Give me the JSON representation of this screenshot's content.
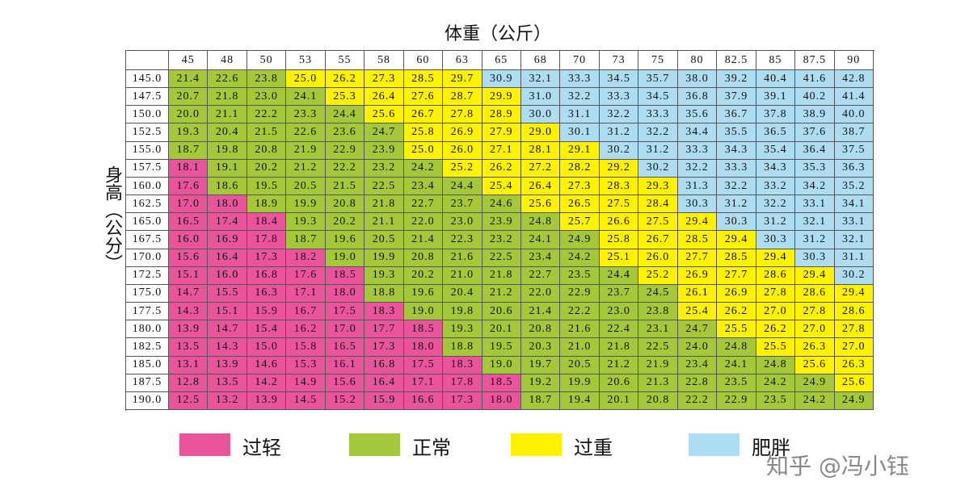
{
  "header": {
    "x_title": "体重（公斤）",
    "y_title": "身高（公分）"
  },
  "legend": [
    {
      "label": "过轻",
      "color": "#e9549b"
    },
    {
      "label": "正常",
      "color": "#a5c83b"
    },
    {
      "label": "过重",
      "color": "#fff200"
    },
    {
      "label": "肥胖",
      "color": "#aedcf0"
    }
  ],
  "watermark": "知乎 @冯小钰",
  "table": {
    "columns": [
      "45",
      "48",
      "50",
      "53",
      "55",
      "58",
      "60",
      "63",
      "65",
      "68",
      "70",
      "73",
      "75",
      "80",
      "82.5",
      "85",
      "87.5",
      "90"
    ],
    "rows": [
      {
        "label": "145.0",
        "cells": [
          "21.4",
          "22.6",
          "23.8",
          "25.0",
          "26.2",
          "27.3",
          "28.5",
          "29.7",
          "30.9",
          "32.1",
          "33.3",
          "34.5",
          "35.7",
          "38.0",
          "39.2",
          "40.4",
          "41.6",
          "42.8"
        ],
        "cell_category": [
          1,
          1,
          1,
          2,
          2,
          2,
          2,
          2,
          3,
          3,
          3,
          3,
          3,
          3,
          3,
          3,
          3,
          3
        ]
      },
      {
        "label": "147.5",
        "cells": [
          "20.7",
          "21.8",
          "23.0",
          "24.1",
          "25.3",
          "26.4",
          "27.6",
          "28.7",
          "29.9",
          "31.0",
          "32.2",
          "33.3",
          "34.5",
          "36.8",
          "37.9",
          "39.1",
          "40.2",
          "41.4"
        ],
        "cell_category": [
          1,
          1,
          1,
          1,
          2,
          2,
          2,
          2,
          2,
          3,
          3,
          3,
          3,
          3,
          3,
          3,
          3,
          3
        ]
      },
      {
        "label": "150.0",
        "cells": [
          "20.0",
          "21.1",
          "22.2",
          "23.3",
          "24.4",
          "25.6",
          "26.7",
          "27.8",
          "28.9",
          "30.0",
          "31.1",
          "32.2",
          "33.3",
          "35.6",
          "36.7",
          "37.8",
          "38.9",
          "40.0"
        ],
        "cell_category": [
          1,
          1,
          1,
          1,
          1,
          2,
          2,
          2,
          2,
          3,
          3,
          3,
          3,
          3,
          3,
          3,
          3,
          3
        ]
      },
      {
        "label": "152.5",
        "cells": [
          "19.3",
          "20.4",
          "21.5",
          "22.6",
          "23.6",
          "24.7",
          "25.8",
          "26.9",
          "27.9",
          "29.0",
          "30.1",
          "31.2",
          "32.2",
          "34.4",
          "35.5",
          "36.5",
          "37.6",
          "38.7"
        ],
        "cell_category": [
          1,
          1,
          1,
          1,
          1,
          1,
          2,
          2,
          2,
          2,
          3,
          3,
          3,
          3,
          3,
          3,
          3,
          3
        ]
      },
      {
        "label": "155.0",
        "cells": [
          "18.7",
          "19.8",
          "20.8",
          "21.9",
          "22.9",
          "23.9",
          "25.0",
          "26.0",
          "27.1",
          "28.1",
          "29.1",
          "30.2",
          "31.2",
          "33.3",
          "34.3",
          "35.4",
          "36.4",
          "37.5"
        ],
        "cell_category": [
          1,
          1,
          1,
          1,
          1,
          1,
          2,
          2,
          2,
          2,
          2,
          3,
          3,
          3,
          3,
          3,
          3,
          3
        ]
      },
      {
        "label": "157.5",
        "cells": [
          "18.1",
          "19.1",
          "20.2",
          "21.2",
          "22.2",
          "23.2",
          "24.2",
          "25.2",
          "26.2",
          "27.2",
          "28.2",
          "29.2",
          "30.2",
          "32.2",
          "33.3",
          "34.3",
          "35.3",
          "36.3"
        ],
        "cell_category": [
          0,
          1,
          1,
          1,
          1,
          1,
          1,
          2,
          2,
          2,
          2,
          2,
          3,
          3,
          3,
          3,
          3,
          3
        ]
      },
      {
        "label": "160.0",
        "cells": [
          "17.6",
          "18.6",
          "19.5",
          "20.5",
          "21.5",
          "22.5",
          "23.4",
          "24.4",
          "25.4",
          "26.4",
          "27.3",
          "28.3",
          "29.3",
          "31.3",
          "32.2",
          "33.2",
          "34.2",
          "35.2"
        ],
        "cell_category": [
          0,
          1,
          1,
          1,
          1,
          1,
          1,
          1,
          2,
          2,
          2,
          2,
          2,
          3,
          3,
          3,
          3,
          3
        ]
      },
      {
        "label": "162.5",
        "cells": [
          "17.0",
          "18.0",
          "18.9",
          "19.9",
          "20.8",
          "21.8",
          "22.7",
          "23.7",
          "24.6",
          "25.6",
          "26.5",
          "27.5",
          "28.4",
          "30.3",
          "31.2",
          "32.2",
          "33.1",
          "34.1"
        ],
        "cell_category": [
          0,
          0,
          1,
          1,
          1,
          1,
          1,
          1,
          1,
          2,
          2,
          2,
          2,
          3,
          3,
          3,
          3,
          3
        ]
      },
      {
        "label": "165.0",
        "cells": [
          "16.5",
          "17.4",
          "18.4",
          "19.3",
          "20.2",
          "21.1",
          "22.0",
          "23.0",
          "23.9",
          "24.8",
          "25.7",
          "26.6",
          "27.5",
          "29.4",
          "30.3",
          "31.2",
          "32.1",
          "33.1"
        ],
        "cell_category": [
          0,
          0,
          0,
          1,
          1,
          1,
          1,
          1,
          1,
          1,
          2,
          2,
          2,
          2,
          3,
          3,
          3,
          3
        ]
      },
      {
        "label": "167.5",
        "cells": [
          "16.0",
          "16.9",
          "17.8",
          "18.7",
          "19.6",
          "20.5",
          "21.4",
          "22.3",
          "23.2",
          "24.1",
          "24.9",
          "25.8",
          "26.7",
          "28.5",
          "29.4",
          "30.3",
          "31.2",
          "32.1"
        ],
        "cell_category": [
          0,
          0,
          0,
          1,
          1,
          1,
          1,
          1,
          1,
          1,
          1,
          2,
          2,
          2,
          2,
          3,
          3,
          3
        ]
      },
      {
        "label": "170.0",
        "cells": [
          "15.6",
          "16.4",
          "17.3",
          "18.2",
          "19.0",
          "19.9",
          "20.8",
          "21.6",
          "22.5",
          "23.4",
          "24.2",
          "25.1",
          "26.0",
          "27.7",
          "28.5",
          "29.4",
          "30.3",
          "31.1"
        ],
        "cell_category": [
          0,
          0,
          0,
          0,
          1,
          1,
          1,
          1,
          1,
          1,
          1,
          2,
          2,
          2,
          2,
          2,
          3,
          3
        ]
      },
      {
        "label": "172.5",
        "cells": [
          "15.1",
          "16.0",
          "16.8",
          "17.6",
          "18.5",
          "19.3",
          "20.2",
          "21.0",
          "21.8",
          "22.7",
          "23.5",
          "24.4",
          "25.2",
          "26.9",
          "27.7",
          "28.6",
          "29.4",
          "30.2"
        ],
        "cell_category": [
          0,
          0,
          0,
          0,
          0,
          1,
          1,
          1,
          1,
          1,
          1,
          1,
          2,
          2,
          2,
          2,
          2,
          3
        ]
      },
      {
        "label": "175.0",
        "cells": [
          "14.7",
          "15.5",
          "16.3",
          "17.1",
          "18.0",
          "18.8",
          "19.6",
          "20.4",
          "21.2",
          "22.0",
          "22.9",
          "23.7",
          "24.5",
          "26.1",
          "26.9",
          "27.8",
          "28.6",
          "29.4"
        ],
        "cell_category": [
          0,
          0,
          0,
          0,
          0,
          1,
          1,
          1,
          1,
          1,
          1,
          1,
          1,
          2,
          2,
          2,
          2,
          2
        ]
      },
      {
        "label": "177.5",
        "cells": [
          "14.3",
          "15.1",
          "15.9",
          "16.7",
          "17.5",
          "18.3",
          "19.0",
          "19.8",
          "20.6",
          "21.4",
          "22.2",
          "23.0",
          "23.8",
          "25.4",
          "26.2",
          "27.0",
          "27.8",
          "28.6"
        ],
        "cell_category": [
          0,
          0,
          0,
          0,
          0,
          0,
          1,
          1,
          1,
          1,
          1,
          1,
          1,
          2,
          2,
          2,
          2,
          2
        ]
      },
      {
        "label": "180.0",
        "cells": [
          "13.9",
          "14.7",
          "15.4",
          "16.2",
          "17.0",
          "17.7",
          "18.5",
          "19.3",
          "20.1",
          "20.8",
          "21.6",
          "22.4",
          "23.1",
          "24.7",
          "25.5",
          "26.2",
          "27.0",
          "27.8"
        ],
        "cell_category": [
          0,
          0,
          0,
          0,
          0,
          0,
          0,
          1,
          1,
          1,
          1,
          1,
          1,
          1,
          2,
          2,
          2,
          2
        ]
      },
      {
        "label": "182.5",
        "cells": [
          "13.5",
          "14.3",
          "15.0",
          "15.8",
          "16.5",
          "17.3",
          "18.0",
          "18.8",
          "19.5",
          "20.3",
          "21.0",
          "21.8",
          "22.5",
          "24.0",
          "24.8",
          "25.5",
          "26.3",
          "27.0"
        ],
        "cell_category": [
          0,
          0,
          0,
          0,
          0,
          0,
          0,
          1,
          1,
          1,
          1,
          1,
          1,
          1,
          1,
          2,
          2,
          2
        ]
      },
      {
        "label": "185.0",
        "cells": [
          "13.1",
          "13.9",
          "14.6",
          "15.3",
          "16.1",
          "16.8",
          "17.5",
          "18.3",
          "19.0",
          "19.7",
          "20.5",
          "21.2",
          "21.9",
          "23.4",
          "24.1",
          "24.8",
          "25.6",
          "26.3"
        ],
        "cell_category": [
          0,
          0,
          0,
          0,
          0,
          0,
          0,
          0,
          1,
          1,
          1,
          1,
          1,
          1,
          1,
          1,
          2,
          2
        ]
      },
      {
        "label": "187.5",
        "cells": [
          "12.8",
          "13.5",
          "14.2",
          "14.9",
          "15.6",
          "16.4",
          "17.1",
          "17.8",
          "18.5",
          "19.2",
          "19.9",
          "20.6",
          "21.3",
          "22.8",
          "23.5",
          "24.2",
          "24.9",
          "25.6"
        ],
        "cell_category": [
          0,
          0,
          0,
          0,
          0,
          0,
          0,
          0,
          0,
          1,
          1,
          1,
          1,
          1,
          1,
          1,
          1,
          2
        ]
      },
      {
        "label": "190.0",
        "cells": [
          "12.5",
          "13.2",
          "13.9",
          "14.5",
          "15.2",
          "15.9",
          "16.6",
          "17.3",
          "18.0",
          "18.7",
          "19.4",
          "20.1",
          "20.8",
          "22.2",
          "22.9",
          "23.5",
          "24.2",
          "24.9"
        ],
        "cell_category": [
          0,
          0,
          0,
          0,
          0,
          0,
          0,
          0,
          0,
          1,
          1,
          1,
          1,
          1,
          1,
          1,
          1,
          1
        ]
      }
    ]
  }
}
